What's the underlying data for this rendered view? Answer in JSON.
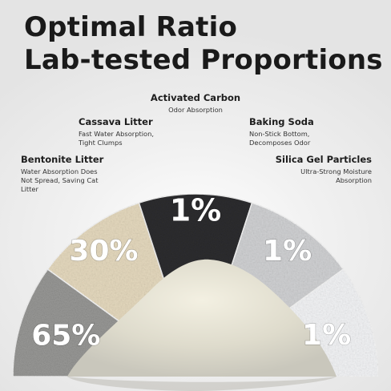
{
  "headline": {
    "line1": "Optimal Ratio",
    "line2": "Lab-tested Proportions"
  },
  "components": [
    {
      "name": "Bentonite Litter",
      "desc_lines": [
        "Water Absorption Does",
        "Not Spread, Saving Cat",
        "Litter"
      ],
      "percent": "65%",
      "color": "#9a9a98"
    },
    {
      "name": "Cassava Litter",
      "desc_lines": [
        "Fast Water Absorption,",
        "Tight Clumps"
      ],
      "percent": "30%",
      "color": "#e4d8bd"
    },
    {
      "name": "Activated Carbon",
      "desc_lines": [
        "Odor Absorption"
      ],
      "percent": "1%",
      "color": "#2e2e30"
    },
    {
      "name": "Baking Soda",
      "desc_lines": [
        "Non-Stick Bottom,",
        "Decomposes Odor"
      ],
      "percent": "1%",
      "color": "#cfd0d2"
    },
    {
      "name": "Silica Gel Particles",
      "desc_lines": [
        "Ultra-Strong Moisture",
        "Absorption"
      ],
      "percent": "1%",
      "color": "#f1f2f4"
    }
  ]
}
